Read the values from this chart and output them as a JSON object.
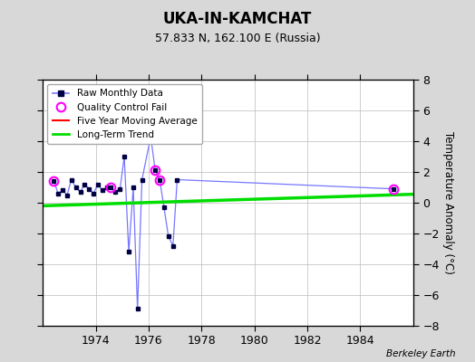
{
  "title": "UKA-IN-KAMCHAT",
  "subtitle": "57.833 N, 162.100 E (Russia)",
  "ylabel": "Temperature Anomaly (°C)",
  "credit": "Berkeley Earth",
  "background_color": "#d8d8d8",
  "plot_bg_color": "#ffffff",
  "xlim": [
    1972.0,
    1986.0
  ],
  "ylim": [
    -8,
    8
  ],
  "yticks": [
    -8,
    -6,
    -4,
    -2,
    0,
    2,
    4,
    6,
    8
  ],
  "xticks": [
    1974,
    1976,
    1978,
    1980,
    1982,
    1984
  ],
  "raw_x": [
    1972.42,
    1972.58,
    1972.75,
    1972.92,
    1973.08,
    1973.25,
    1973.42,
    1973.58,
    1973.75,
    1973.92,
    1974.08,
    1974.25,
    1974.42,
    1974.58,
    1974.75,
    1974.92,
    1975.08,
    1975.25,
    1975.42,
    1975.58,
    1975.75,
    1976.08,
    1976.25,
    1976.42,
    1976.58,
    1976.75,
    1976.92,
    1977.08,
    1985.25
  ],
  "raw_y": [
    1.4,
    0.6,
    0.8,
    0.5,
    1.5,
    1.0,
    0.7,
    1.2,
    0.9,
    0.6,
    1.2,
    0.8,
    1.0,
    1.0,
    0.7,
    0.9,
    3.0,
    -3.2,
    1.0,
    -6.9,
    1.5,
    4.3,
    2.1,
    1.5,
    -0.3,
    -2.2,
    -2.8,
    1.5,
    0.9
  ],
  "qc_x": [
    1972.42,
    1974.58,
    1976.25,
    1976.42,
    1985.25
  ],
  "qc_y": [
    1.4,
    1.0,
    2.1,
    1.5,
    0.9
  ],
  "trend_x": [
    1972.0,
    1986.0
  ],
  "trend_y": [
    -0.2,
    0.55
  ],
  "line_color": "#7777ff",
  "dot_color": "#000044",
  "qc_color": "#ff00ff",
  "ma_color": "#ff0000",
  "trend_color": "#00dd00",
  "grid_color": "#bbbbbb"
}
